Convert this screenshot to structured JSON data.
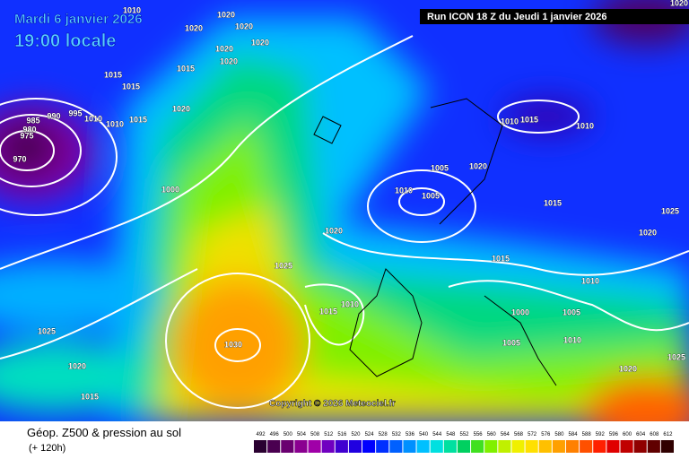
{
  "header": {
    "date": "Mardi 6 janvier 2026",
    "time": "19:00 locale",
    "run": "Run ICON 18 Z du Jeudi 1 janvier 2026"
  },
  "copyright": "Copyright © 2026 Meteociel.fr",
  "footer": {
    "title": "Géop. Z500 & pression au sol",
    "subtitle": "(+ 120h)"
  },
  "isobar_labels": [
    "1010",
    "1020",
    "1020",
    "1020",
    "1020",
    "1020",
    "1020",
    "1015",
    "1015",
    "1015",
    "1020",
    "985",
    "990",
    "995",
    "1010",
    "1010",
    "1015",
    "980",
    "975",
    "970",
    "1000",
    "1010",
    "1015",
    "1010",
    "1020",
    "1005",
    "1010",
    "1005",
    "1015",
    "1025",
    "1020",
    "1020",
    "1025",
    "1015",
    "1010",
    "1010",
    "1015",
    "1000",
    "1005",
    "1025",
    "1030",
    "1005",
    "1010",
    "1020",
    "1020",
    "1025",
    "1015",
    "1020"
  ],
  "scale": {
    "labels": [
      492,
      496,
      500,
      504,
      508,
      512,
      516,
      520,
      524,
      528,
      532,
      536,
      540,
      544,
      548,
      552,
      556,
      560,
      564,
      568,
      572,
      576,
      580,
      584,
      588,
      592,
      596,
      600,
      604,
      608,
      612
    ],
    "colors": [
      "#2a0030",
      "#4a0050",
      "#6a0070",
      "#8a0090",
      "#a000a8",
      "#7000c0",
      "#4000d0",
      "#2000e0",
      "#0000ff",
      "#0030ff",
      "#0060ff",
      "#0090ff",
      "#00c0ff",
      "#00e0e0",
      "#00e0a0",
      "#00d060",
      "#40e020",
      "#80f000",
      "#c0f000",
      "#f0f000",
      "#ffe000",
      "#ffc000",
      "#ffa000",
      "#ff8000",
      "#ff5000",
      "#ff2000",
      "#e00000",
      "#c00000",
      "#900000",
      "#600000",
      "#300000"
    ]
  }
}
